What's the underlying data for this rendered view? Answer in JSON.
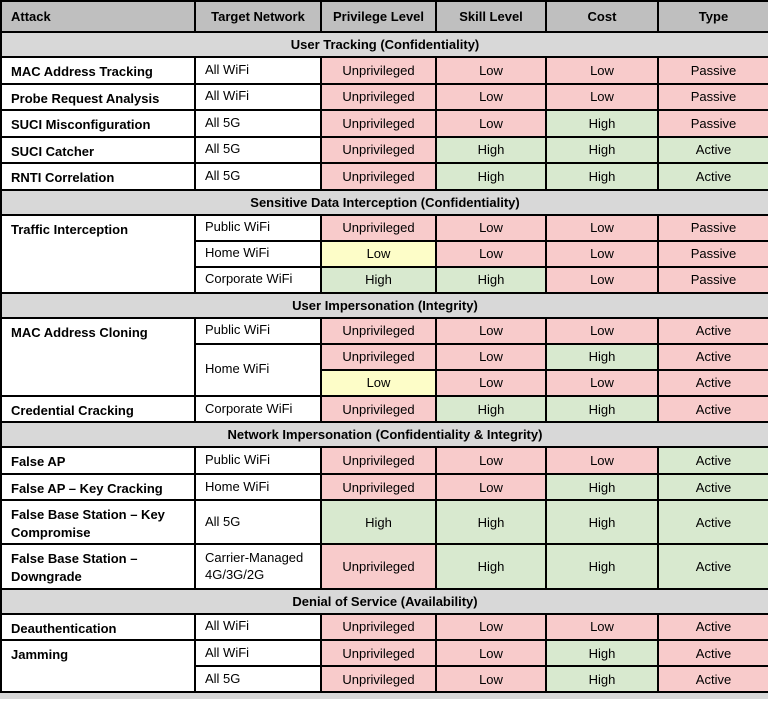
{
  "table": {
    "header": [
      "Attack",
      "Target Network",
      "Privilege Level",
      "Skill Level",
      "Cost",
      "Type"
    ],
    "palette": {
      "pink": "#f8cbcb",
      "green": "#d8e9cf",
      "yellow": "#fdfdc8",
      "header_gray": "#bfbfbf",
      "section_gray": "#d8d8d8",
      "white": "#ffffff",
      "border": "#000000"
    },
    "sections": [
      {
        "title": "User Tracking (Confidentiality)",
        "rows": [
          {
            "attack": {
              "text": "MAC Address Tracking",
              "rowspan": 1
            },
            "target": {
              "text": "All WiFi",
              "rowspan": 1
            },
            "values": [
              {
                "text": "Unprivileged",
                "bg": "pink"
              },
              {
                "text": "Low",
                "bg": "pink"
              },
              {
                "text": "Low",
                "bg": "pink"
              },
              {
                "text": "Passive",
                "bg": "pink"
              }
            ]
          },
          {
            "attack": {
              "text": "Probe Request Analysis",
              "rowspan": 1
            },
            "target": {
              "text": "All WiFi",
              "rowspan": 1
            },
            "values": [
              {
                "text": "Unprivileged",
                "bg": "pink"
              },
              {
                "text": "Low",
                "bg": "pink"
              },
              {
                "text": "Low",
                "bg": "pink"
              },
              {
                "text": "Passive",
                "bg": "pink"
              }
            ]
          },
          {
            "attack": {
              "text": "SUCI Misconfiguration",
              "rowspan": 1
            },
            "target": {
              "text": "All 5G",
              "rowspan": 1
            },
            "values": [
              {
                "text": "Unprivileged",
                "bg": "pink"
              },
              {
                "text": "Low",
                "bg": "pink"
              },
              {
                "text": "High",
                "bg": "green"
              },
              {
                "text": "Passive",
                "bg": "pink"
              }
            ]
          },
          {
            "attack": {
              "text": "SUCI Catcher",
              "rowspan": 1
            },
            "target": {
              "text": "All 5G",
              "rowspan": 1
            },
            "values": [
              {
                "text": "Unprivileged",
                "bg": "pink"
              },
              {
                "text": "High",
                "bg": "green"
              },
              {
                "text": "High",
                "bg": "green"
              },
              {
                "text": "Active",
                "bg": "green"
              }
            ]
          },
          {
            "attack": {
              "text": "RNTI Correlation",
              "rowspan": 1
            },
            "target": {
              "text": "All 5G",
              "rowspan": 1
            },
            "values": [
              {
                "text": "Unprivileged",
                "bg": "pink"
              },
              {
                "text": "High",
                "bg": "green"
              },
              {
                "text": "High",
                "bg": "green"
              },
              {
                "text": "Active",
                "bg": "green"
              }
            ]
          }
        ]
      },
      {
        "title": "Sensitive Data Interception (Confidentiality)",
        "rows": [
          {
            "attack": {
              "text": "Traffic Interception",
              "rowspan": 3
            },
            "target": {
              "text": "Public WiFi",
              "rowspan": 1
            },
            "values": [
              {
                "text": "Unprivileged",
                "bg": "pink"
              },
              {
                "text": "Low",
                "bg": "pink"
              },
              {
                "text": "Low",
                "bg": "pink"
              },
              {
                "text": "Passive",
                "bg": "pink"
              }
            ]
          },
          {
            "attack": null,
            "target": {
              "text": "Home WiFi",
              "rowspan": 1
            },
            "values": [
              {
                "text": "Low",
                "bg": "yellow"
              },
              {
                "text": "Low",
                "bg": "pink"
              },
              {
                "text": "Low",
                "bg": "pink"
              },
              {
                "text": "Passive",
                "bg": "pink"
              }
            ]
          },
          {
            "attack": null,
            "target": {
              "text": "Corporate WiFi",
              "rowspan": 1
            },
            "values": [
              {
                "text": "High",
                "bg": "green"
              },
              {
                "text": "High",
                "bg": "green"
              },
              {
                "text": "Low",
                "bg": "pink"
              },
              {
                "text": "Passive",
                "bg": "pink"
              }
            ]
          }
        ]
      },
      {
        "title": "User Impersonation (Integrity)",
        "rows": [
          {
            "attack": {
              "text": "MAC Address Cloning",
              "rowspan": 3
            },
            "target": {
              "text": "Public WiFi",
              "rowspan": 1
            },
            "values": [
              {
                "text": "Unprivileged",
                "bg": "pink"
              },
              {
                "text": "Low",
                "bg": "pink"
              },
              {
                "text": "Low",
                "bg": "pink"
              },
              {
                "text": "Active",
                "bg": "pink"
              }
            ]
          },
          {
            "attack": null,
            "target": {
              "text": "Home WiFi",
              "rowspan": 2
            },
            "values": [
              {
                "text": "Unprivileged",
                "bg": "pink"
              },
              {
                "text": "Low",
                "bg": "pink"
              },
              {
                "text": "High",
                "bg": "green"
              },
              {
                "text": "Active",
                "bg": "pink"
              }
            ]
          },
          {
            "attack": null,
            "target": null,
            "values": [
              {
                "text": "Low",
                "bg": "yellow"
              },
              {
                "text": "Low",
                "bg": "pink"
              },
              {
                "text": "Low",
                "bg": "pink"
              },
              {
                "text": "Active",
                "bg": "pink"
              }
            ]
          },
          {
            "attack": {
              "text": "Credential Cracking",
              "rowspan": 1
            },
            "target": {
              "text": "Corporate WiFi",
              "rowspan": 1
            },
            "values": [
              {
                "text": "Unprivileged",
                "bg": "pink"
              },
              {
                "text": "High",
                "bg": "green"
              },
              {
                "text": "High",
                "bg": "green"
              },
              {
                "text": "Active",
                "bg": "pink"
              }
            ]
          }
        ]
      },
      {
        "title": "Network Impersonation (Confidentiality & Integrity)",
        "rows": [
          {
            "attack": {
              "text": "False AP",
              "rowspan": 1
            },
            "target": {
              "text": "Public WiFi",
              "rowspan": 1
            },
            "values": [
              {
                "text": "Unprivileged",
                "bg": "pink"
              },
              {
                "text": "Low",
                "bg": "pink"
              },
              {
                "text": "Low",
                "bg": "pink"
              },
              {
                "text": "Active",
                "bg": "green"
              }
            ]
          },
          {
            "attack": {
              "text": "False AP – Key Cracking",
              "rowspan": 1
            },
            "target": {
              "text": "Home WiFi",
              "rowspan": 1
            },
            "values": [
              {
                "text": "Unprivileged",
                "bg": "pink"
              },
              {
                "text": "Low",
                "bg": "pink"
              },
              {
                "text": "High",
                "bg": "green"
              },
              {
                "text": "Active",
                "bg": "green"
              }
            ]
          },
          {
            "attack": {
              "text": "False Base Station – Key Compromise",
              "rowspan": 1
            },
            "target": {
              "text": "All 5G",
              "rowspan": 1
            },
            "tall": true,
            "values": [
              {
                "text": "High",
                "bg": "green"
              },
              {
                "text": "High",
                "bg": "green"
              },
              {
                "text": "High",
                "bg": "green"
              },
              {
                "text": "Active",
                "bg": "green"
              }
            ]
          },
          {
            "attack": {
              "text": "False Base Station – Downgrade",
              "rowspan": 1
            },
            "target": {
              "text": "Carrier-Managed 4G/3G/2G",
              "rowspan": 1
            },
            "tall": true,
            "values": [
              {
                "text": "Unprivileged",
                "bg": "pink"
              },
              {
                "text": "High",
                "bg": "green"
              },
              {
                "text": "High",
                "bg": "green"
              },
              {
                "text": "Active",
                "bg": "green"
              }
            ]
          }
        ]
      },
      {
        "title": "Denial of Service (Availability)",
        "rows": [
          {
            "attack": {
              "text": "Deauthentication",
              "rowspan": 1
            },
            "target": {
              "text": "All WiFi",
              "rowspan": 1
            },
            "values": [
              {
                "text": "Unprivileged",
                "bg": "pink"
              },
              {
                "text": "Low",
                "bg": "pink"
              },
              {
                "text": "Low",
                "bg": "pink"
              },
              {
                "text": "Active",
                "bg": "pink"
              }
            ]
          },
          {
            "attack": {
              "text": "Jamming",
              "rowspan": 2
            },
            "target": {
              "text": "All WiFi",
              "rowspan": 1
            },
            "values": [
              {
                "text": "Unprivileged",
                "bg": "pink"
              },
              {
                "text": "Low",
                "bg": "pink"
              },
              {
                "text": "High",
                "bg": "green"
              },
              {
                "text": "Active",
                "bg": "pink"
              }
            ]
          },
          {
            "attack": null,
            "target": {
              "text": "All 5G",
              "rowspan": 1
            },
            "values": [
              {
                "text": "Unprivileged",
                "bg": "pink"
              },
              {
                "text": "Low",
                "bg": "pink"
              },
              {
                "text": "High",
                "bg": "green"
              },
              {
                "text": "Active",
                "bg": "pink"
              }
            ]
          }
        ]
      }
    ]
  }
}
